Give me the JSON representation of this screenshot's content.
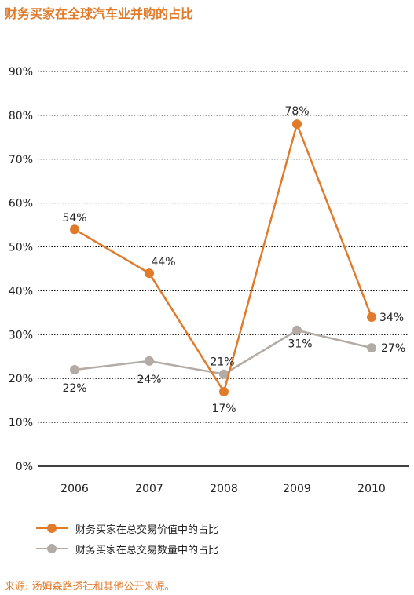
{
  "chart_data": {
    "type": "line",
    "title": "财务买家在全球汽车业并购的占比",
    "categories": [
      "2006",
      "2007",
      "2008",
      "2009",
      "2010"
    ],
    "ylim": [
      0,
      90
    ],
    "yticks": [
      "0%",
      "10%",
      "20%",
      "30%",
      "40%",
      "50%",
      "60%",
      "70%",
      "80%",
      "90%"
    ],
    "grid": true,
    "legend_position": "bottom-left",
    "series": [
      {
        "name": "财务买家在总交易价值中的占比",
        "color": "#e07b2b",
        "values": [
          54,
          44,
          17,
          78,
          34
        ],
        "labels": [
          "54%",
          "44%",
          "17%",
          "78%",
          "34%"
        ]
      },
      {
        "name": "财务买家在总交易数量中的占比",
        "color": "#b3aba5",
        "values": [
          22,
          24,
          21,
          31,
          27
        ],
        "labels": [
          "22%",
          "24%",
          "21%",
          "31%",
          "27%"
        ]
      }
    ]
  },
  "source": "来源: 汤姆森路透社和其他公开来源。"
}
